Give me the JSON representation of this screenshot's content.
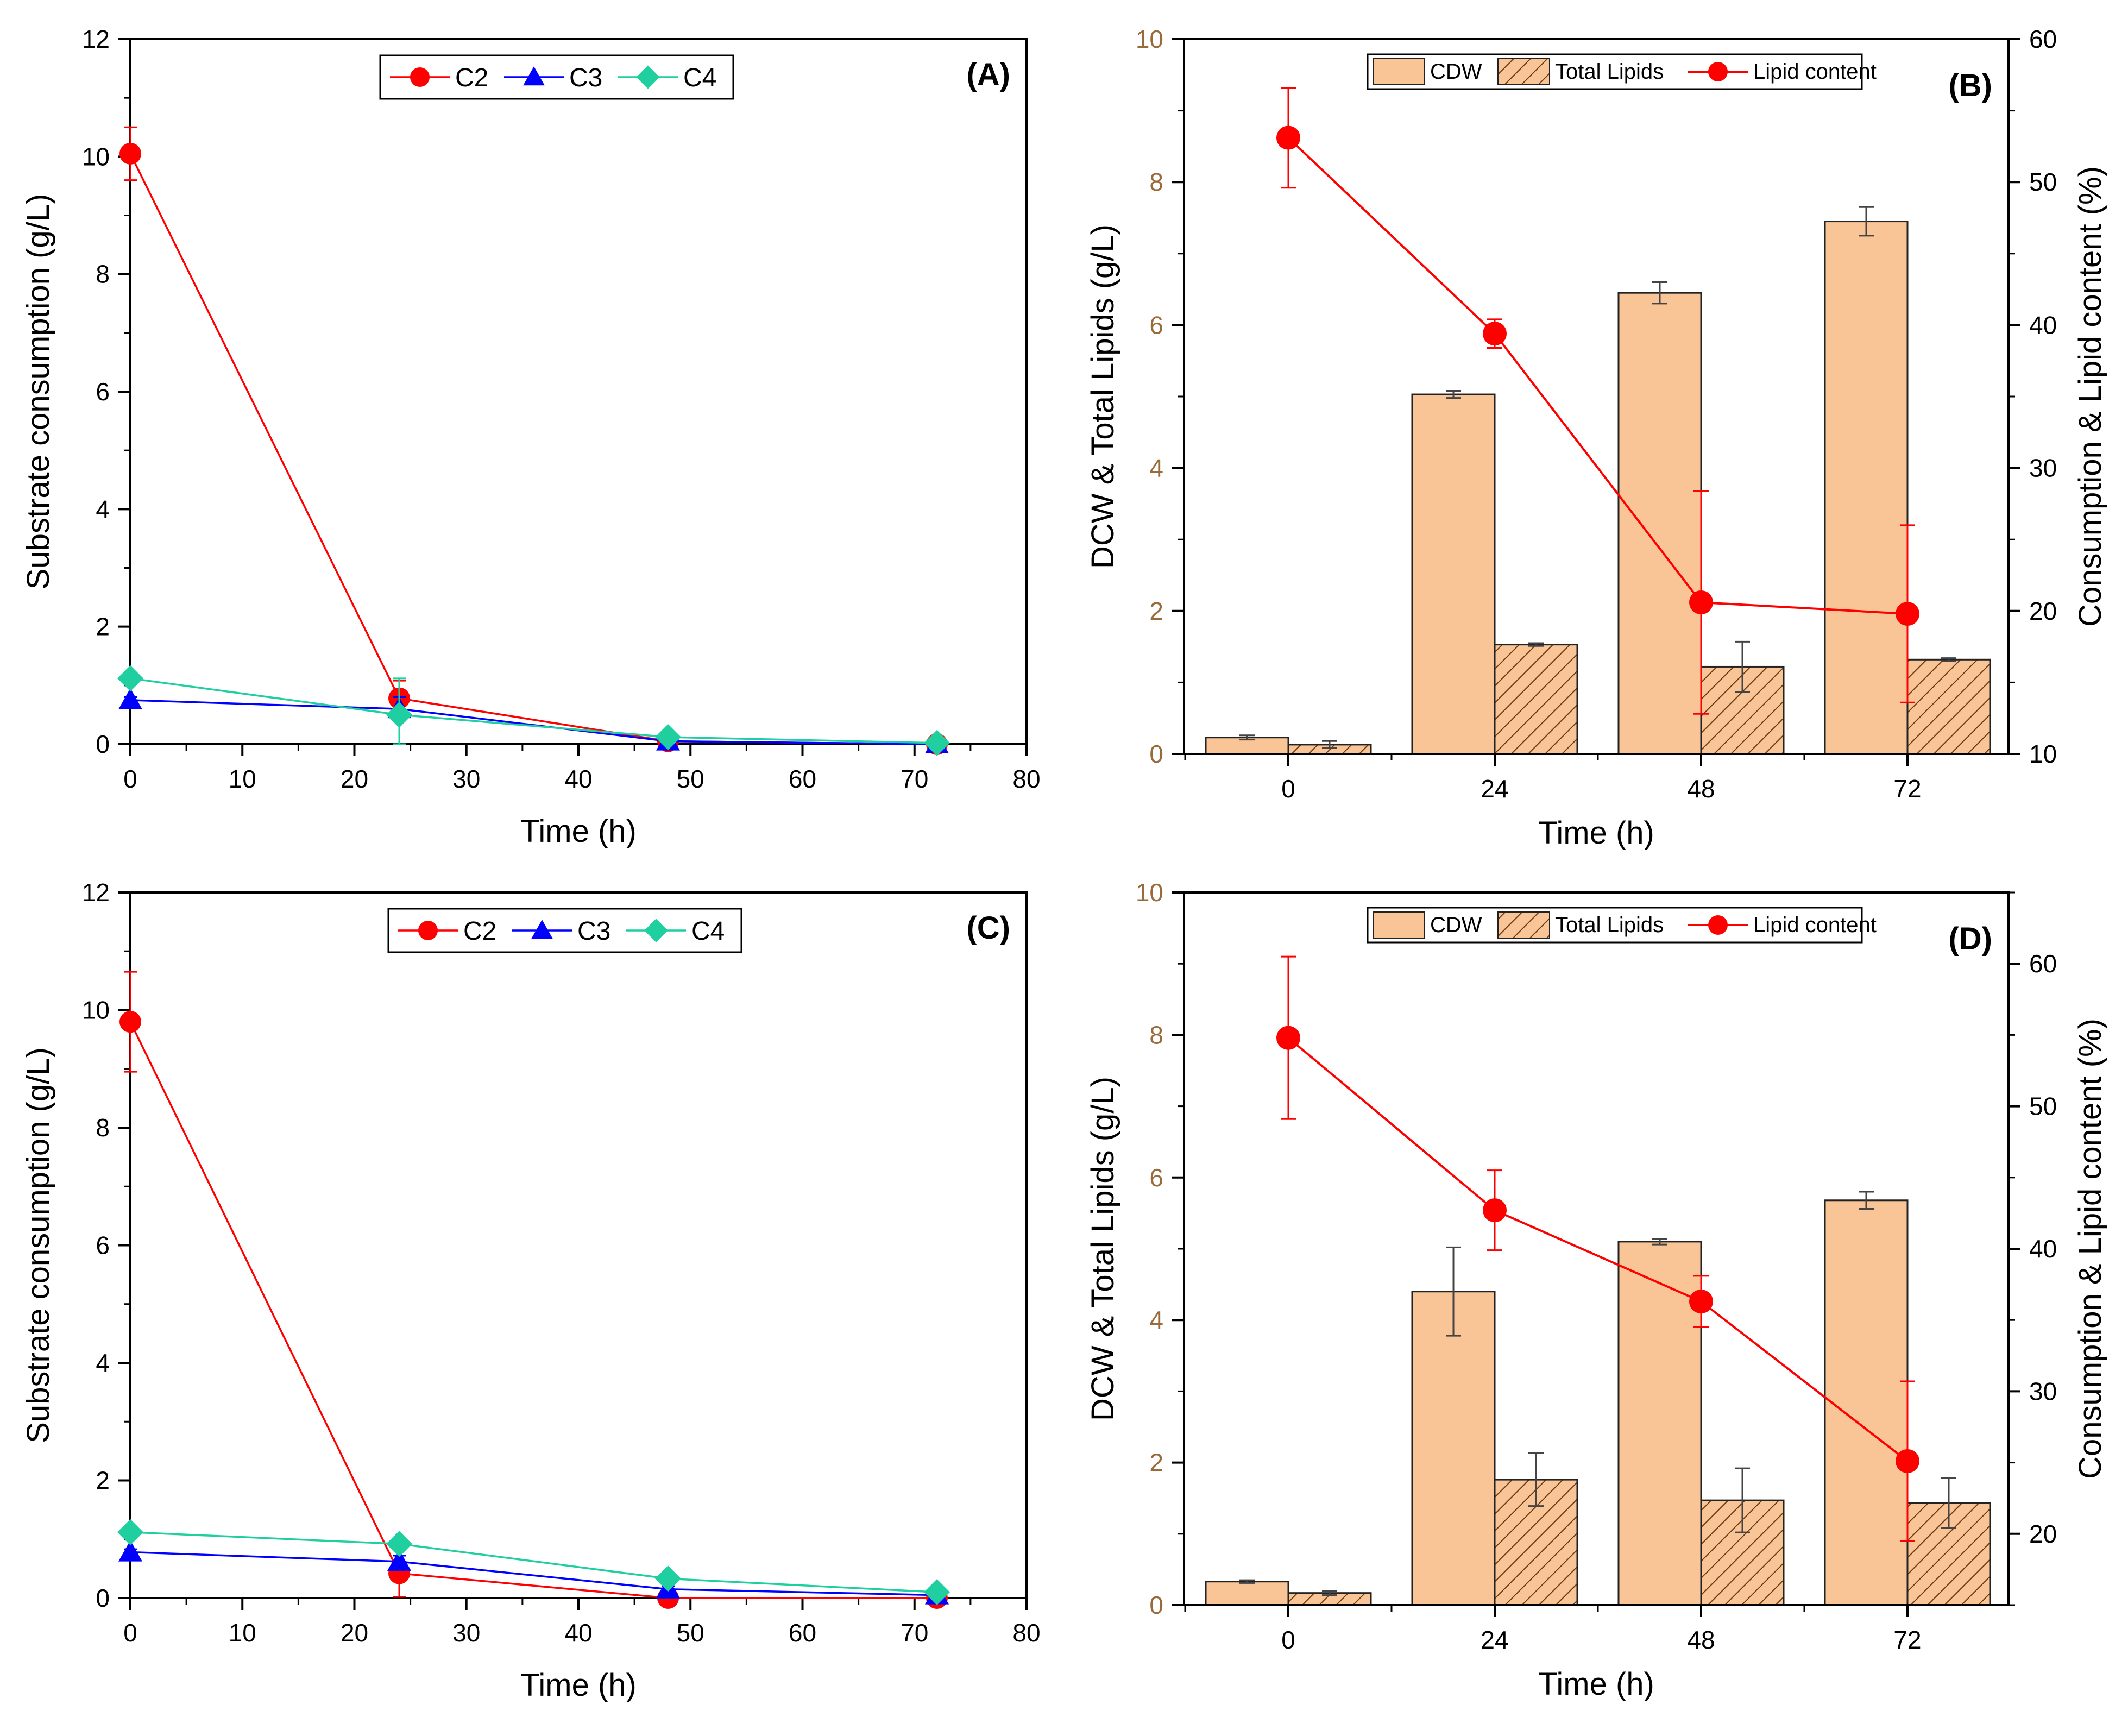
{
  "chart_data": [
    {
      "panel": "(A)",
      "type": "line",
      "xlabel": "Time (h)",
      "ylabel": "Substrate consumption (g/L)",
      "xlim": [
        0,
        80
      ],
      "ylim": [
        0,
        12
      ],
      "xticks": [
        0,
        10,
        20,
        30,
        40,
        50,
        60,
        70,
        80
      ],
      "yticks": [
        0,
        2,
        4,
        6,
        8,
        10,
        12
      ],
      "legend": "top-center",
      "series": [
        {
          "name": "C2",
          "color": "#ff0000",
          "marker": "circle",
          "x": [
            0,
            24,
            48,
            72
          ],
          "y": [
            10.05,
            0.78,
            0.05,
            0.0
          ],
          "err": [
            0.45,
            0.3,
            0.1,
            0.0
          ]
        },
        {
          "name": "C3",
          "color": "#0000ff",
          "marker": "triangle",
          "x": [
            0,
            24,
            48,
            72
          ],
          "y": [
            0.75,
            0.6,
            0.05,
            0.0
          ],
          "err": [
            0.05,
            0.2,
            0.05,
            0.0
          ]
        },
        {
          "name": "C4",
          "color": "#1fcf9f",
          "marker": "diamond",
          "x": [
            0,
            24,
            48,
            72
          ],
          "y": [
            1.12,
            0.5,
            0.12,
            0.02
          ],
          "err": [
            0.1,
            0.62,
            0.1,
            0.02
          ]
        }
      ]
    },
    {
      "panel": "(B)",
      "type": "bar",
      "xlabel": "Time (h)",
      "ylabel": "DCW & Total Lipids (g/L)",
      "ylabel_right": "Consumption & Lipid content (%)",
      "categories": [
        "0",
        "24",
        "48",
        "72"
      ],
      "ylim": [
        0,
        10
      ],
      "yticks": [
        0,
        2,
        4,
        6,
        8,
        10
      ],
      "ylim_right": [
        10,
        60
      ],
      "yticks_right": [
        10,
        20,
        30,
        40,
        50,
        60
      ],
      "legend": "top-center",
      "series": [
        {
          "name": "CDW",
          "kind": "bar",
          "color": "#f9c597",
          "values": [
            0.23,
            5.03,
            6.45,
            7.45
          ],
          "err": [
            0.03,
            0.05,
            0.15,
            0.2
          ]
        },
        {
          "name": "Total Lipids",
          "kind": "hatched-bar",
          "color": "#f9c597",
          "values": [
            0.13,
            1.53,
            1.22,
            1.32
          ],
          "err": [
            0.05,
            0.02,
            0.35,
            0.02
          ]
        },
        {
          "name": "Lipid content",
          "kind": "line",
          "axis": "right",
          "color": "#ff0000",
          "values": [
            53.1,
            39.4,
            20.6,
            19.8
          ],
          "err": [
            3.5,
            1.0,
            7.8,
            6.2
          ]
        }
      ]
    },
    {
      "panel": "(C)",
      "type": "line",
      "xlabel": "Time (h)",
      "ylabel": "Substrate consumption (g/L)",
      "xlim": [
        0,
        80
      ],
      "ylim": [
        0,
        12
      ],
      "xticks": [
        0,
        10,
        20,
        30,
        40,
        50,
        60,
        70,
        80
      ],
      "yticks": [
        0,
        2,
        4,
        6,
        8,
        10,
        12
      ],
      "legend": "top-center",
      "series": [
        {
          "name": "C2",
          "color": "#ff0000",
          "marker": "circle",
          "x": [
            0,
            24,
            48,
            72
          ],
          "y": [
            9.8,
            0.42,
            0.0,
            0.0
          ],
          "err": [
            0.85,
            0.4,
            0.0,
            0.0
          ]
        },
        {
          "name": "C3",
          "color": "#0000ff",
          "marker": "triangle",
          "x": [
            0,
            24,
            48,
            72
          ],
          "y": [
            0.78,
            0.62,
            0.15,
            0.05
          ],
          "err": [
            0.05,
            0.1,
            0.05,
            0.05
          ]
        },
        {
          "name": "C4",
          "color": "#1fcf9f",
          "marker": "diamond",
          "x": [
            0,
            24,
            48,
            72
          ],
          "y": [
            1.12,
            0.92,
            0.33,
            0.1
          ],
          "err": [
            0.1,
            0.1,
            0.1,
            0.1
          ]
        }
      ]
    },
    {
      "panel": "(D)",
      "type": "bar",
      "xlabel": "Time (h)",
      "ylabel": "DCW & Total Lipids (g/L)",
      "ylabel_right": "Consumption & Lipid content (%)",
      "categories": [
        "0",
        "24",
        "48",
        "72"
      ],
      "ylim": [
        0,
        10
      ],
      "yticks": [
        0,
        2,
        4,
        6,
        8,
        10
      ],
      "ylim_right": [
        15,
        65
      ],
      "yticks_right": [
        20,
        30,
        40,
        50,
        60
      ],
      "legend": "top-center",
      "series": [
        {
          "name": "CDW",
          "kind": "bar",
          "color": "#f9c597",
          "values": [
            0.33,
            4.4,
            5.1,
            5.68
          ],
          "err": [
            0.02,
            0.62,
            0.04,
            0.12
          ]
        },
        {
          "name": "Total Lipids",
          "kind": "hatched-bar",
          "color": "#f9c597",
          "values": [
            0.17,
            1.76,
            1.47,
            1.43
          ],
          "err": [
            0.03,
            0.37,
            0.45,
            0.35
          ]
        },
        {
          "name": "Lipid content",
          "kind": "line",
          "axis": "right",
          "color": "#ff0000",
          "values": [
            54.8,
            42.7,
            36.3,
            25.1
          ],
          "err": [
            5.7,
            2.8,
            1.8,
            5.6
          ]
        }
      ]
    }
  ]
}
